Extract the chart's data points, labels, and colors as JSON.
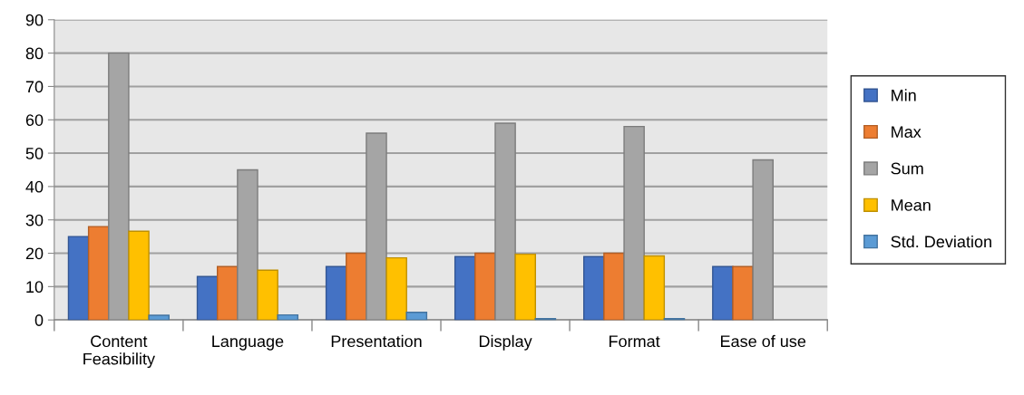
{
  "chart_data": {
    "type": "bar",
    "categories": [
      "Content\nFeasibility",
      "Language",
      "Presentation",
      "Display",
      "Format",
      "Ease of use"
    ],
    "series": [
      {
        "name": "Min",
        "color": "#4472c4",
        "values": [
          25,
          13,
          16,
          19,
          19,
          16
        ]
      },
      {
        "name": "Max",
        "color": "#ed7d31",
        "values": [
          28,
          16,
          20,
          20,
          20,
          16
        ]
      },
      {
        "name": "Sum",
        "color": "#a5a5a5",
        "values": [
          80,
          45,
          56,
          59,
          58,
          48
        ]
      },
      {
        "name": "Mean",
        "color": "#ffc000",
        "values": [
          26.6,
          14.9,
          18.6,
          19.7,
          19.2,
          null
        ]
      },
      {
        "name": "Std. Deviation",
        "color": "#5b9bd5",
        "values": [
          1.4,
          1.5,
          2.3,
          0.4,
          0.4,
          null
        ]
      }
    ],
    "ylim": [
      0,
      90
    ],
    "yticks": [
      0,
      10,
      20,
      30,
      40,
      50,
      60,
      70,
      80,
      90
    ],
    "grid": "y",
    "legend": "right"
  }
}
